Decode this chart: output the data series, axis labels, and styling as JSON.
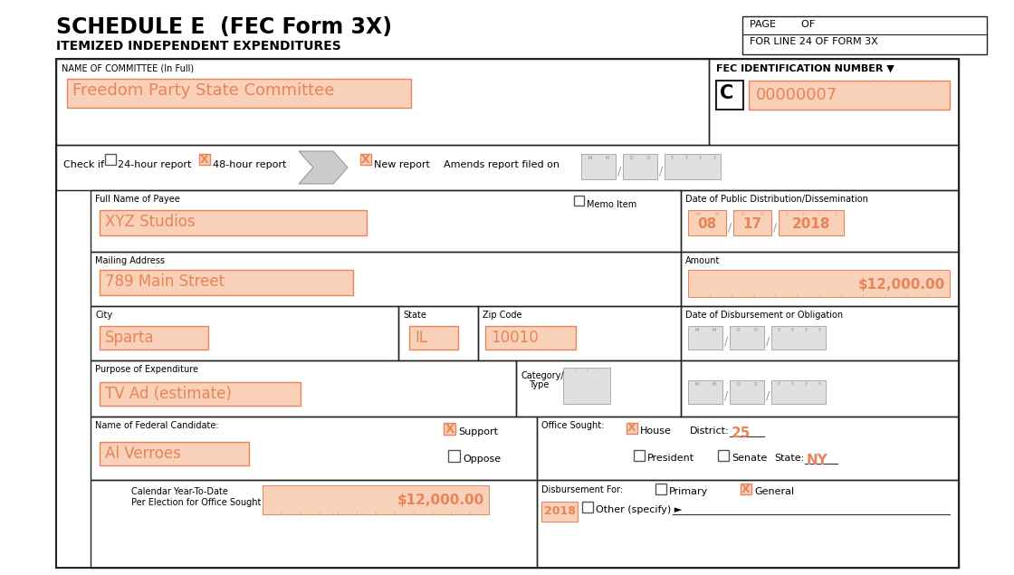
{
  "title_line1": "SCHEDULE E  (FEC Form 3X)",
  "title_line2": "ITEMIZED INDEPENDENT EXPENDITURES",
  "page_box_line1": "PAGE        OF",
  "page_box_line2": "FOR LINE 24 OF FORM 3X",
  "fec_id_label": "FEC IDENTIFICATION NUMBER ▼",
  "fec_id_letter": "C",
  "fec_id_number": "00000007",
  "committee_label": "NAME OF COMMITTEE (In Full)",
  "committee_name": "Freedom Party State Committee",
  "check_if": "Check if",
  "report_24h": "24-hour report",
  "report_48h": "48-hour report",
  "new_report": "New report",
  "amends_report": "Amends report filed on",
  "payee_label": "Full Name of Payee",
  "payee_name": "XYZ Studios",
  "memo_label": "Memo Item",
  "dist_date_label": "Date of Public Distribution/Dissemination",
  "dist_date_mm": "08",
  "dist_date_dd": "17",
  "dist_date_yyyy": "2018",
  "address_label": "Mailing Address",
  "address_value": "789 Main Street",
  "city_label": "City",
  "state_label": "State",
  "zip_label": "Zip Code",
  "city_value": "Sparta",
  "state_value": "IL",
  "zip_value": "10010",
  "amount_label": "Amount",
  "amount_value": "$12,000.00",
  "disbursement_date_label": "Date of Disbursement or Obligation",
  "purpose_label": "Purpose of Expenditure",
  "category_label": "Category/\nType",
  "purpose_value": "TV Ad (estimate)",
  "candidate_label": "Name of Federal Candidate:",
  "candidate_value": "Al Verroes",
  "support_label": "Support",
  "oppose_label": "Oppose",
  "office_sought_label": "Office Sought:",
  "house_label": "House",
  "district_label": "District:",
  "district_value": "25",
  "president_label": "President",
  "senate_label": "Senate",
  "state_label2": "State:",
  "state_value2": "NY",
  "calendar_label1": "Calendar Year-To-Date",
  "calendar_label2": "Per Election for Office Sought",
  "calendar_value": "$12,000.00",
  "disbursement_for_label": "Disbursement For:",
  "primary_label": "Primary",
  "general_label": "General",
  "year_value": "2018",
  "other_label": "Other (specify) ►",
  "highlight_color": "#e8845a",
  "highlight_bg": "#f9d0b8",
  "box_border": "#aaaaaa",
  "dark_border": "#222222",
  "background": "#ffffff"
}
